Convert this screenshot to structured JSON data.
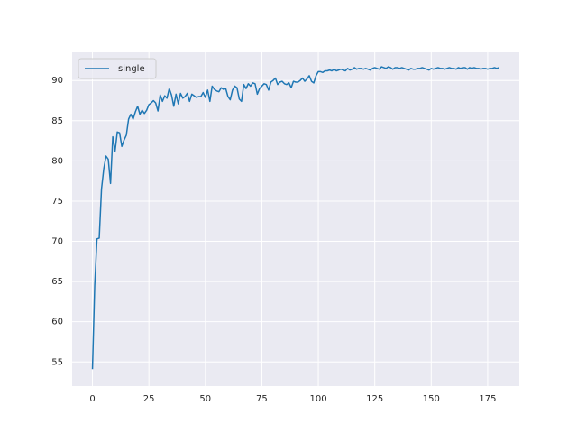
{
  "chart_data": {
    "type": "line",
    "x": [
      0,
      1,
      2,
      3,
      4,
      5,
      6,
      7,
      8,
      9,
      10,
      11,
      12,
      13,
      14,
      15,
      16,
      17,
      18,
      19,
      20,
      21,
      22,
      23,
      24,
      25,
      26,
      27,
      28,
      29,
      30,
      31,
      32,
      33,
      34,
      35,
      36,
      37,
      38,
      39,
      40,
      41,
      42,
      43,
      44,
      45,
      46,
      47,
      48,
      49,
      50,
      51,
      52,
      53,
      54,
      55,
      56,
      57,
      58,
      59,
      60,
      61,
      62,
      63,
      64,
      65,
      66,
      67,
      68,
      69,
      70,
      71,
      72,
      73,
      74,
      75,
      76,
      77,
      78,
      79,
      80,
      81,
      82,
      83,
      84,
      85,
      86,
      87,
      88,
      89,
      90,
      91,
      92,
      93,
      94,
      95,
      96,
      97,
      98,
      99,
      100,
      101,
      102,
      103,
      104,
      105,
      106,
      107,
      108,
      109,
      110,
      111,
      112,
      113,
      114,
      115,
      116,
      117,
      118,
      119,
      120,
      121,
      122,
      123,
      124,
      125,
      126,
      127,
      128,
      129,
      130,
      131,
      132,
      133,
      134,
      135,
      136,
      137,
      138,
      139,
      140,
      141,
      142,
      143,
      144,
      145,
      146,
      147,
      148,
      149,
      150,
      151,
      152,
      153,
      154,
      155,
      156,
      157,
      158,
      159,
      160,
      161,
      162,
      163,
      164,
      165,
      166,
      167,
      168,
      169,
      170,
      171,
      172,
      173,
      174,
      175,
      176,
      177,
      178,
      179,
      180
    ],
    "series": [
      {
        "name": "single",
        "color": "#1f77b4",
        "values": [
          54.1,
          64.5,
          70.3,
          70.4,
          76.5,
          79.0,
          80.6,
          80.2,
          77.2,
          83.0,
          81.2,
          83.6,
          83.5,
          81.8,
          82.6,
          83.2,
          85.2,
          85.8,
          85.2,
          86.1,
          86.8,
          85.8,
          86.3,
          85.9,
          86.3,
          87.0,
          87.2,
          87.5,
          87.2,
          86.2,
          88.2,
          87.4,
          88.1,
          87.8,
          89.0,
          88.2,
          86.8,
          88.3,
          87.1,
          88.4,
          87.8,
          88.0,
          88.4,
          87.4,
          88.3,
          88.1,
          87.9,
          88.0,
          88.0,
          88.5,
          87.9,
          88.8,
          87.4,
          89.3,
          88.9,
          88.7,
          88.6,
          89.1,
          88.9,
          89.0,
          88.0,
          87.6,
          88.8,
          89.3,
          89.1,
          87.7,
          87.4,
          89.5,
          89.0,
          89.6,
          89.3,
          89.7,
          89.6,
          88.3,
          89.0,
          89.3,
          89.6,
          89.5,
          88.8,
          89.8,
          90.0,
          90.3,
          89.5,
          89.8,
          89.9,
          89.6,
          89.5,
          89.7,
          89.1,
          89.9,
          89.8,
          89.8,
          90.0,
          90.3,
          89.9,
          90.2,
          90.6,
          89.9,
          89.7,
          90.6,
          91.1,
          91.1,
          91.0,
          91.2,
          91.2,
          91.3,
          91.2,
          91.4,
          91.2,
          91.3,
          91.4,
          91.3,
          91.2,
          91.5,
          91.3,
          91.4,
          91.6,
          91.4,
          91.5,
          91.5,
          91.4,
          91.5,
          91.4,
          91.3,
          91.5,
          91.6,
          91.5,
          91.4,
          91.7,
          91.6,
          91.5,
          91.7,
          91.6,
          91.4,
          91.6,
          91.6,
          91.5,
          91.6,
          91.5,
          91.4,
          91.3,
          91.5,
          91.4,
          91.4,
          91.5,
          91.5,
          91.6,
          91.5,
          91.4,
          91.3,
          91.5,
          91.4,
          91.5,
          91.6,
          91.5,
          91.5,
          91.4,
          91.5,
          91.6,
          91.5,
          91.5,
          91.4,
          91.6,
          91.5,
          91.6,
          91.6,
          91.4,
          91.6,
          91.5,
          91.6,
          91.5,
          91.5,
          91.4,
          91.5,
          91.5,
          91.4,
          91.5,
          91.5,
          91.6,
          91.5,
          91.6
        ]
      }
    ],
    "xlim": [
      -9,
      189
    ],
    "xticks": [
      0,
      25,
      50,
      75,
      100,
      125,
      150,
      175
    ],
    "ylim": [
      52,
      93.5
    ],
    "yticks": [
      55,
      60,
      65,
      70,
      75,
      80,
      85,
      90
    ],
    "grid": true,
    "legend": "upper left"
  }
}
